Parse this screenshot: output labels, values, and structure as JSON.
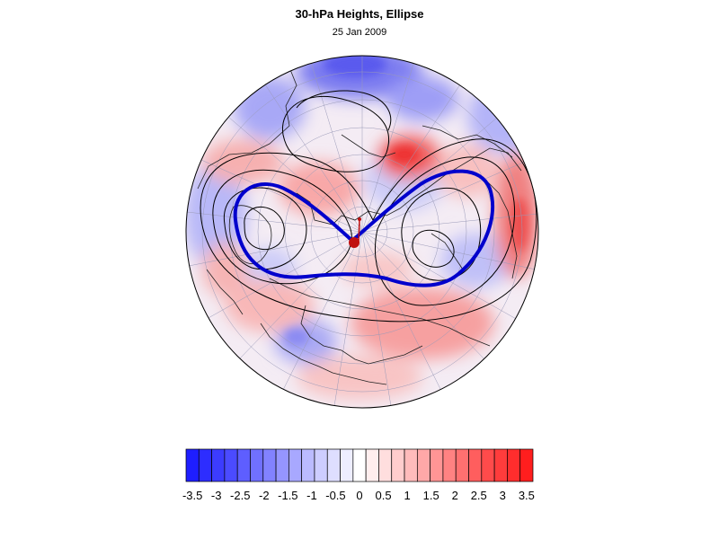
{
  "title": "30-hPa Heights, Ellipse",
  "date": "25 Jan 2009",
  "colorbar": {
    "labels": [
      "-3.5",
      "-3",
      "-2.5",
      "-2",
      "-1.5",
      "-1",
      "-0.5",
      "0",
      "0.5",
      "1",
      "1.5",
      "2",
      "2.5",
      "3",
      "3.5"
    ],
    "colors": [
      "#1e1eff",
      "#2d2dff",
      "#3c3cff",
      "#4b4bff",
      "#5e5eff",
      "#7070ff",
      "#8282ff",
      "#9595ff",
      "#a8a8ff",
      "#bbbbff",
      "#cdcdff",
      "#dedeff",
      "#eeeeff",
      "#ffffff",
      "#ffeeee",
      "#ffdede",
      "#ffcdcd",
      "#ffbbbb",
      "#ffa8a8",
      "#ff9595",
      "#ff8282",
      "#ff7070",
      "#ff5e5e",
      "#ff4b4b",
      "#ff3c3c",
      "#ff2d2d",
      "#ff1e1e"
    ]
  },
  "map": {
    "projection": "polar-stereographic",
    "ellipse_color": "#0000cc",
    "contour_color": "#000000",
    "marker_color": "#c01010"
  }
}
